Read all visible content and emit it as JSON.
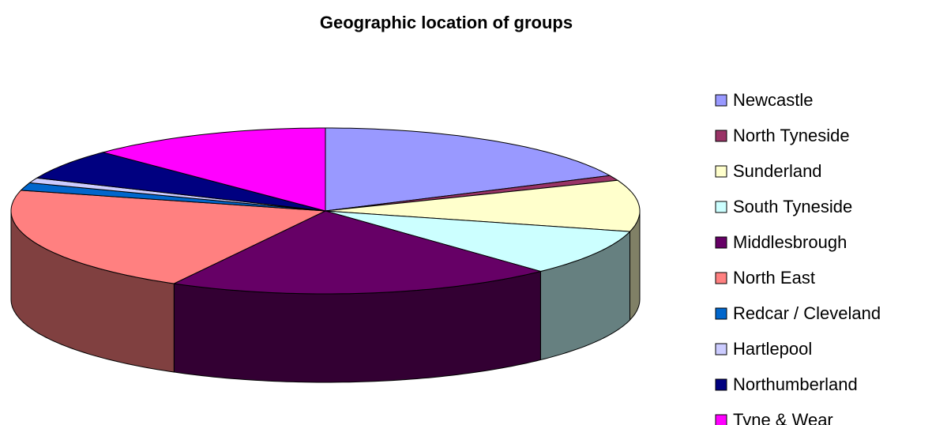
{
  "chart_data": {
    "type": "pie",
    "title": "Geographic location of groups",
    "categories": [
      "Newcastle",
      "North Tyneside",
      "Sunderland",
      "South Tyneside",
      "Middlesbrough",
      "North East",
      "Redcar / Cleveland",
      "Hartlepool",
      "Northumberland",
      "Tyne & Wear"
    ],
    "values": [
      18,
      1,
      10,
      9,
      20,
      21,
      1.5,
      1,
      6,
      12.5
    ],
    "colors": [
      "#9999ff",
      "#993366",
      "#ffffcc",
      "#ccffff",
      "#660066",
      "#ff8080",
      "#0066cc",
      "#ccccff",
      "#000080",
      "#ff00ff"
    ],
    "legend": "right"
  }
}
